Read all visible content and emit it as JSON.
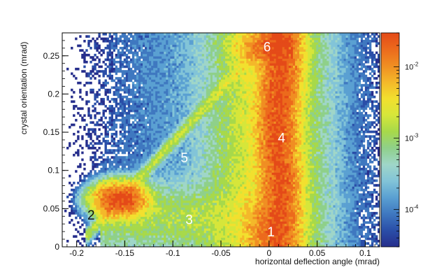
{
  "chart_data": {
    "type": "heatmap",
    "title": "",
    "xlabel": "horizontal deflection angle (mrad)",
    "ylabel": "crystal orientation (mrad)",
    "xlim": [
      -0.215,
      0.115
    ],
    "ylim": [
      0,
      0.28
    ],
    "x_ticks": [
      -0.2,
      -0.15,
      -0.1,
      -0.05,
      0,
      0.05,
      0.1
    ],
    "x_tick_labels": [
      "-0.2",
      "-0.15",
      "-0.1",
      "-0.05",
      "0",
      "0.05",
      "0.1"
    ],
    "y_ticks": [
      0,
      0.05,
      0.1,
      0.15,
      0.2,
      0.25
    ],
    "y_tick_labels": [
      "0",
      "0.05",
      "0.1",
      "0.15",
      "0.2",
      "0.25"
    ],
    "z_scale": "log",
    "zlim": [
      3e-05,
      0.03
    ],
    "colorbar_ticks": [
      {
        "value": 0.0001,
        "base": "10",
        "exp": "-4"
      },
      {
        "value": 0.001,
        "base": "10",
        "exp": "-3"
      },
      {
        "value": 0.01,
        "base": "10",
        "exp": "-2"
      }
    ],
    "colorscale": [
      "#262e8c",
      "#2a4ea8",
      "#3f78c0",
      "#5aa0d2",
      "#82c4d8",
      "#9fd6c8",
      "#8fd08a",
      "#a7d94a",
      "#d6e63a",
      "#f2e02e",
      "#f4b82a",
      "#f08e22",
      "#ec6a1c",
      "#e44a18"
    ],
    "region_labels": [
      {
        "label": "1",
        "x": 0.002,
        "y": 0.02,
        "color": "#ffffff"
      },
      {
        "label": "2",
        "x": -0.185,
        "y": 0.042,
        "color": "#111111"
      },
      {
        "label": "3",
        "x": -0.083,
        "y": 0.036,
        "color": "#ffffff"
      },
      {
        "label": "4",
        "x": 0.013,
        "y": 0.143,
        "color": "#ffffff"
      },
      {
        "label": "5",
        "x": -0.088,
        "y": 0.117,
        "color": "#ffffff"
      },
      {
        "label": "6",
        "x": -0.002,
        "y": 0.262,
        "color": "#ffffff"
      }
    ],
    "grid": false
  }
}
